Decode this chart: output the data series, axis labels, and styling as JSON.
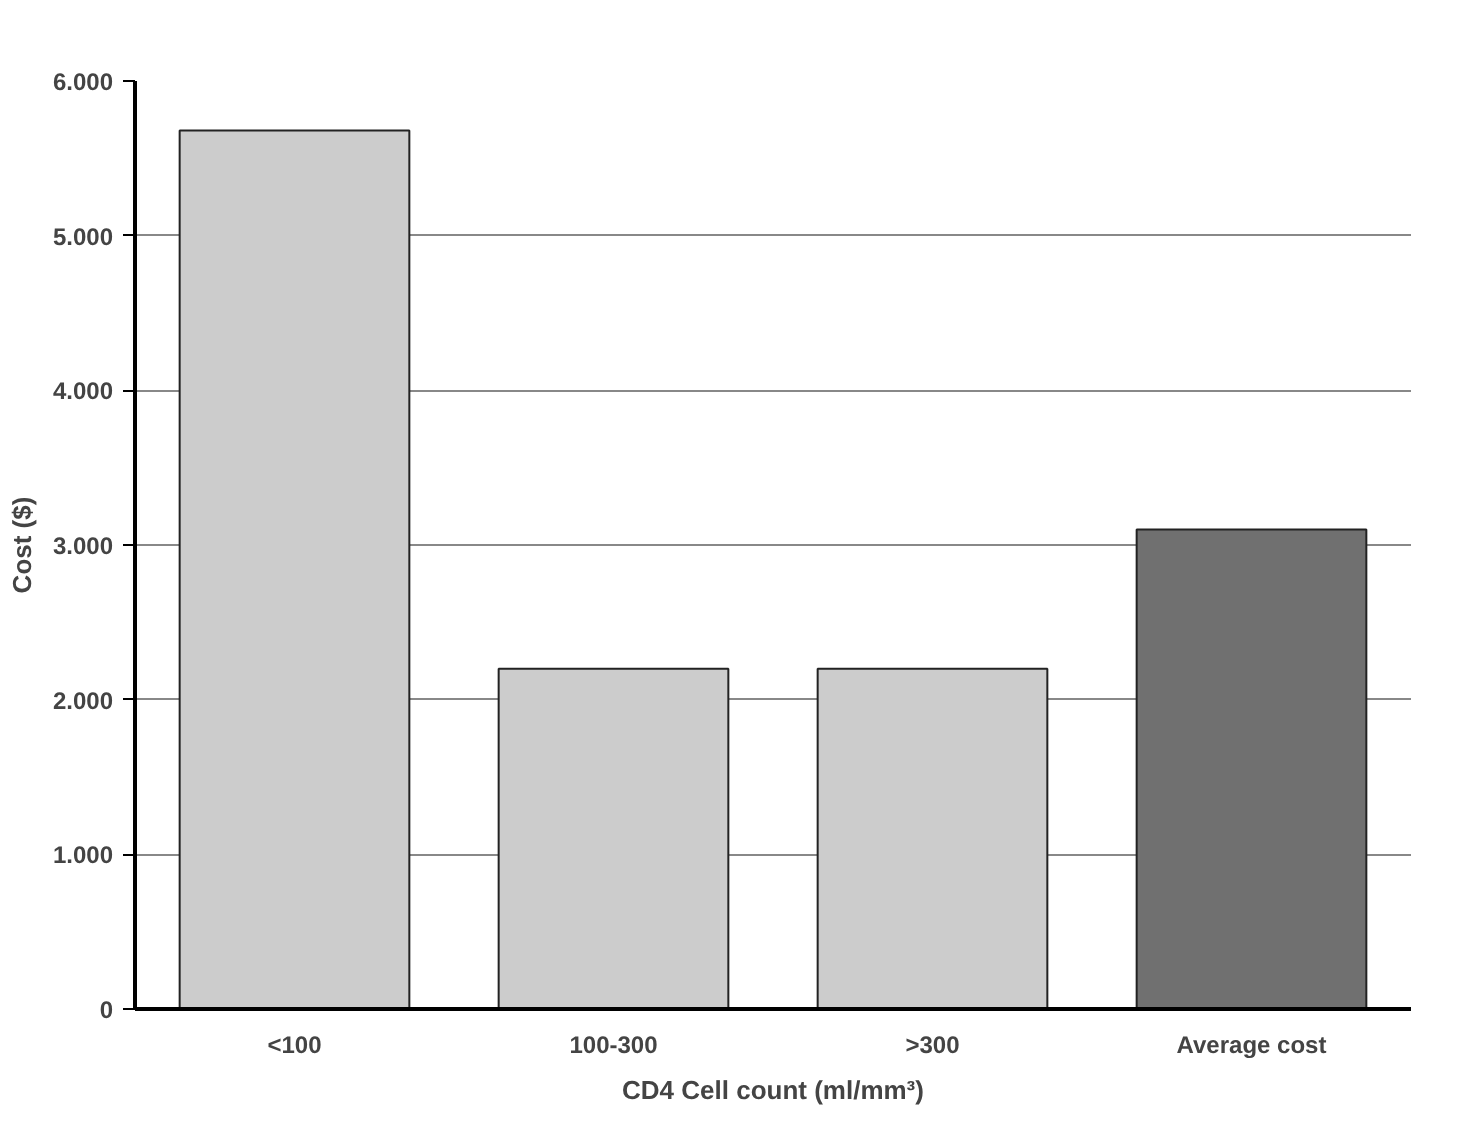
{
  "chart_data": {
    "type": "bar",
    "xlabel": "CD4 Cell count (ml/mm³)",
    "ylabel": "Cost ($)",
    "categories": [
      "<100",
      "100-300",
      ">300",
      "Average cost"
    ],
    "values": [
      5680,
      2200,
      2200,
      3100
    ],
    "colors": [
      "#cccccc",
      "#cccccc",
      "#cccccc",
      "#707070"
    ],
    "ylim": [
      0,
      6000
    ],
    "yticks": [
      {
        "value": 0,
        "label": "0"
      },
      {
        "value": 1000,
        "label": "1.000"
      },
      {
        "value": 2000,
        "label": "2.000"
      },
      {
        "value": 3000,
        "label": "3.000"
      },
      {
        "value": 4000,
        "label": "4.000"
      },
      {
        "value": 5000,
        "label": "5.000"
      },
      {
        "value": 6000,
        "label": "6.000"
      }
    ],
    "grid": "y"
  }
}
